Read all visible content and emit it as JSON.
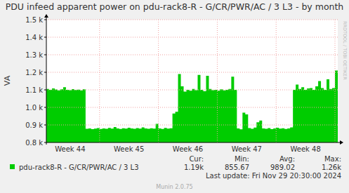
{
  "chart_data": {
    "type": "area",
    "title": "PDU infeed apparent power on pdu-rack8-R - G/CR/PWR/AC / 3 L3 - by month",
    "y_label": "VA",
    "categories": [
      null,
      null,
      null,
      null,
      null,
      null,
      null,
      null,
      "Week 44",
      null,
      null,
      null,
      null,
      null,
      null,
      null,
      null,
      null,
      null,
      null,
      null,
      null,
      null,
      null,
      null,
      null,
      null,
      null,
      null,
      "Week 45",
      null,
      null,
      null,
      null,
      null,
      null,
      null,
      null,
      null,
      null,
      null,
      null,
      null,
      null,
      null,
      null,
      null,
      null,
      null,
      null,
      "Week 46",
      null,
      null,
      null,
      null,
      null,
      null,
      null,
      null,
      null,
      null,
      null,
      null,
      null,
      null,
      null,
      null,
      null,
      null,
      null,
      null,
      "Week 47",
      null,
      null,
      null,
      null,
      null,
      null,
      null,
      null,
      null,
      null,
      null,
      null,
      null,
      null,
      null,
      null,
      null,
      null,
      null,
      null,
      "Week 48",
      null,
      null,
      null,
      null,
      null,
      null,
      null,
      null,
      null,
      null,
      null
    ],
    "series": [
      {
        "name": "pdu-rack8-R - G/CR/PWR/AC / 3 L3",
        "color": "#00cc00",
        "values": [
          1105,
          1100,
          1108,
          1102,
          1097,
          1103,
          1115,
          1100,
          1098,
          1104,
          1099,
          1101,
          1097,
          1103,
          878,
          880,
          876,
          879,
          882,
          877,
          880,
          878,
          883,
          879,
          888,
          880,
          877,
          881,
          879,
          884,
          880,
          878,
          882,
          879,
          886,
          880,
          878,
          881,
          879,
          906,
          880,
          877,
          883,
          879,
          881,
          965,
          975,
          1190,
          1120,
          1090,
          1100,
          1095,
          1105,
          1098,
          1185,
          1100,
          1092,
          1180,
          1105,
          1098,
          1100,
          1095,
          1103,
          1097,
          1100,
          1105,
          1175,
          1100,
          880,
          875,
          970,
          960,
          882,
          878,
          885,
          915,
          925,
          880,
          878,
          882,
          876,
          880,
          884,
          879,
          881,
          877,
          880,
          886,
          1100,
          1130,
          1105,
          1115,
          1100,
          1108,
          1110,
          1100,
          1120,
          1150,
          1110,
          1100,
          1160,
          1105,
          1110,
          1210
        ]
      }
    ],
    "ylim": [
      800,
      1500
    ],
    "yticks": [
      {
        "value": 800,
        "label": "0.8 k"
      },
      {
        "value": 900,
        "label": "0.9 k"
      },
      {
        "value": 1000,
        "label": "1.0 k"
      },
      {
        "value": 1100,
        "label": "1.1 k"
      },
      {
        "value": 1200,
        "label": "1.2 k"
      },
      {
        "value": 1300,
        "label": "1.3 k"
      },
      {
        "value": 1400,
        "label": "1.4 k"
      },
      {
        "value": 1500,
        "label": "1.5 k"
      }
    ],
    "grid": true,
    "legend": "bottom",
    "stats": [
      {
        "label": "Cur:",
        "value": "1.19k"
      },
      {
        "label": "Min:",
        "value": "855.67"
      },
      {
        "label": "Avg:",
        "value": "989.02"
      },
      {
        "label": "Max:",
        "value": "1.26k"
      }
    ],
    "last_update": "Last update: Fri Nov 29 20:30:00 2024",
    "footer": "Munin 2.0.75",
    "watermark": "RRDTOOL / TOBI OETIKER"
  }
}
